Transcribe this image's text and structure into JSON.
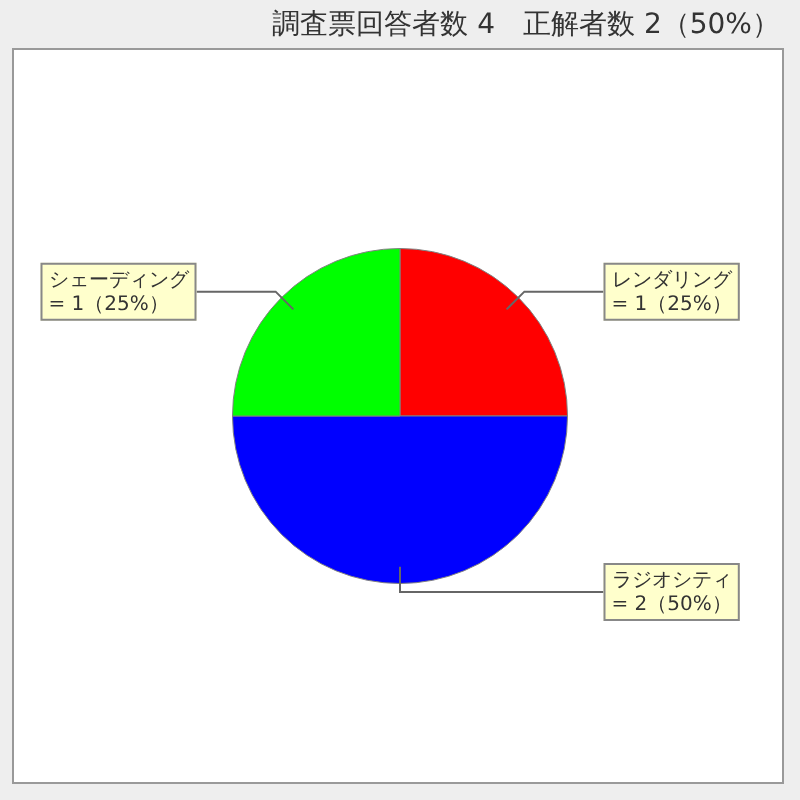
{
  "chart_data": {
    "type": "pie",
    "title": "調査票回答者数 4　正解者数 2（50%）",
    "categories": [
      "レンダリング",
      "ラジオシティ",
      "シェーディング"
    ],
    "values": [
      1,
      2,
      1
    ],
    "colors": [
      "#ff0000",
      "#0000ff",
      "#00ff00"
    ],
    "value_labels": [
      "= 1（25%）",
      "= 2（50%）",
      "= 1（25%）"
    ]
  }
}
